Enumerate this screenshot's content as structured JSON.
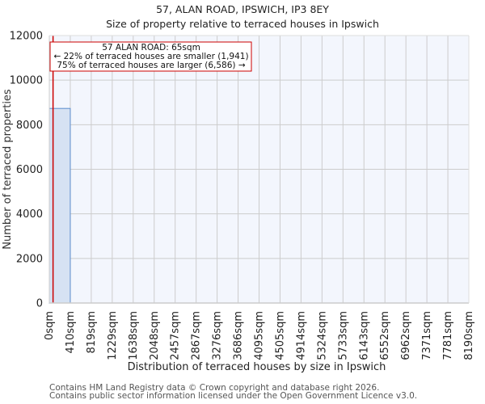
{
  "header": {
    "title": "57, ALAN ROAD, IPSWICH, IP3 8EY",
    "subtitle": "Size of property relative to terraced houses in Ipswich"
  },
  "footer": {
    "line1": "Contains HM Land Registry data © Crown copyright and database right 2026.",
    "line2": "Contains public sector information licensed under the Open Government Licence v3.0."
  },
  "colors": {
    "plot_bg": "#f3f6fd",
    "grid": "#cccccc",
    "bar_fill": "#d6e2f3",
    "bar_edge": "#5b8ccc",
    "marker": "#cc0000"
  },
  "chart_data": {
    "type": "bar",
    "title": "57, ALAN ROAD, IPSWICH, IP3 8EY",
    "subtitle": "Size of property relative to terraced houses in Ipswich",
    "xlabel": "Distribution of terraced houses by size in Ipswich",
    "ylabel": "Number of terraced properties",
    "ylim": [
      0,
      12000
    ],
    "yticks": [
      0,
      2000,
      4000,
      6000,
      8000,
      10000,
      12000
    ],
    "categories": [
      "0sqm",
      "410sqm",
      "819sqm",
      "1229sqm",
      "1638sqm",
      "2048sqm",
      "2457sqm",
      "2867sqm",
      "3276sqm",
      "3686sqm",
      "4095sqm",
      "4505sqm",
      "4914sqm",
      "5324sqm",
      "5733sqm",
      "6143sqm",
      "6552sqm",
      "6962sqm",
      "7371sqm",
      "7781sqm",
      "8190sqm"
    ],
    "bins": [
      {
        "from": "0sqm",
        "to": "410sqm",
        "value": 8730
      },
      {
        "from": "410sqm",
        "to": "819sqm",
        "value": 0
      },
      {
        "from": "819sqm",
        "to": "1229sqm",
        "value": 0
      },
      {
        "from": "1229sqm",
        "to": "1638sqm",
        "value": 0
      },
      {
        "from": "1638sqm",
        "to": "2048sqm",
        "value": 0
      },
      {
        "from": "2048sqm",
        "to": "2457sqm",
        "value": 0
      },
      {
        "from": "2457sqm",
        "to": "2867sqm",
        "value": 0
      },
      {
        "from": "2867sqm",
        "to": "3276sqm",
        "value": 0
      },
      {
        "from": "3276sqm",
        "to": "3686sqm",
        "value": 0
      },
      {
        "from": "3686sqm",
        "to": "4095sqm",
        "value": 0
      },
      {
        "from": "4095sqm",
        "to": "4505sqm",
        "value": 0
      },
      {
        "from": "4505sqm",
        "to": "4914sqm",
        "value": 0
      },
      {
        "from": "4914sqm",
        "to": "5324sqm",
        "value": 0
      },
      {
        "from": "5324sqm",
        "to": "5733sqm",
        "value": 0
      },
      {
        "from": "5733sqm",
        "to": "6143sqm",
        "value": 0
      },
      {
        "from": "6143sqm",
        "to": "6552sqm",
        "value": 0
      },
      {
        "from": "6552sqm",
        "to": "6962sqm",
        "value": 0
      },
      {
        "from": "6962sqm",
        "to": "7371sqm",
        "value": 0
      },
      {
        "from": "7371sqm",
        "to": "7781sqm",
        "value": 0
      },
      {
        "from": "7781sqm",
        "to": "8190sqm",
        "value": 0
      }
    ],
    "xmax": 8190,
    "marker": {
      "x": 65,
      "label": "57 ALAN ROAD: 65sqm"
    },
    "annotation": {
      "line1": "57 ALAN ROAD: 65sqm",
      "line2": "← 22% of terraced houses are smaller (1,941)",
      "line3": "75% of terraced houses are larger (6,586) →"
    },
    "grid": true,
    "legend": null
  }
}
